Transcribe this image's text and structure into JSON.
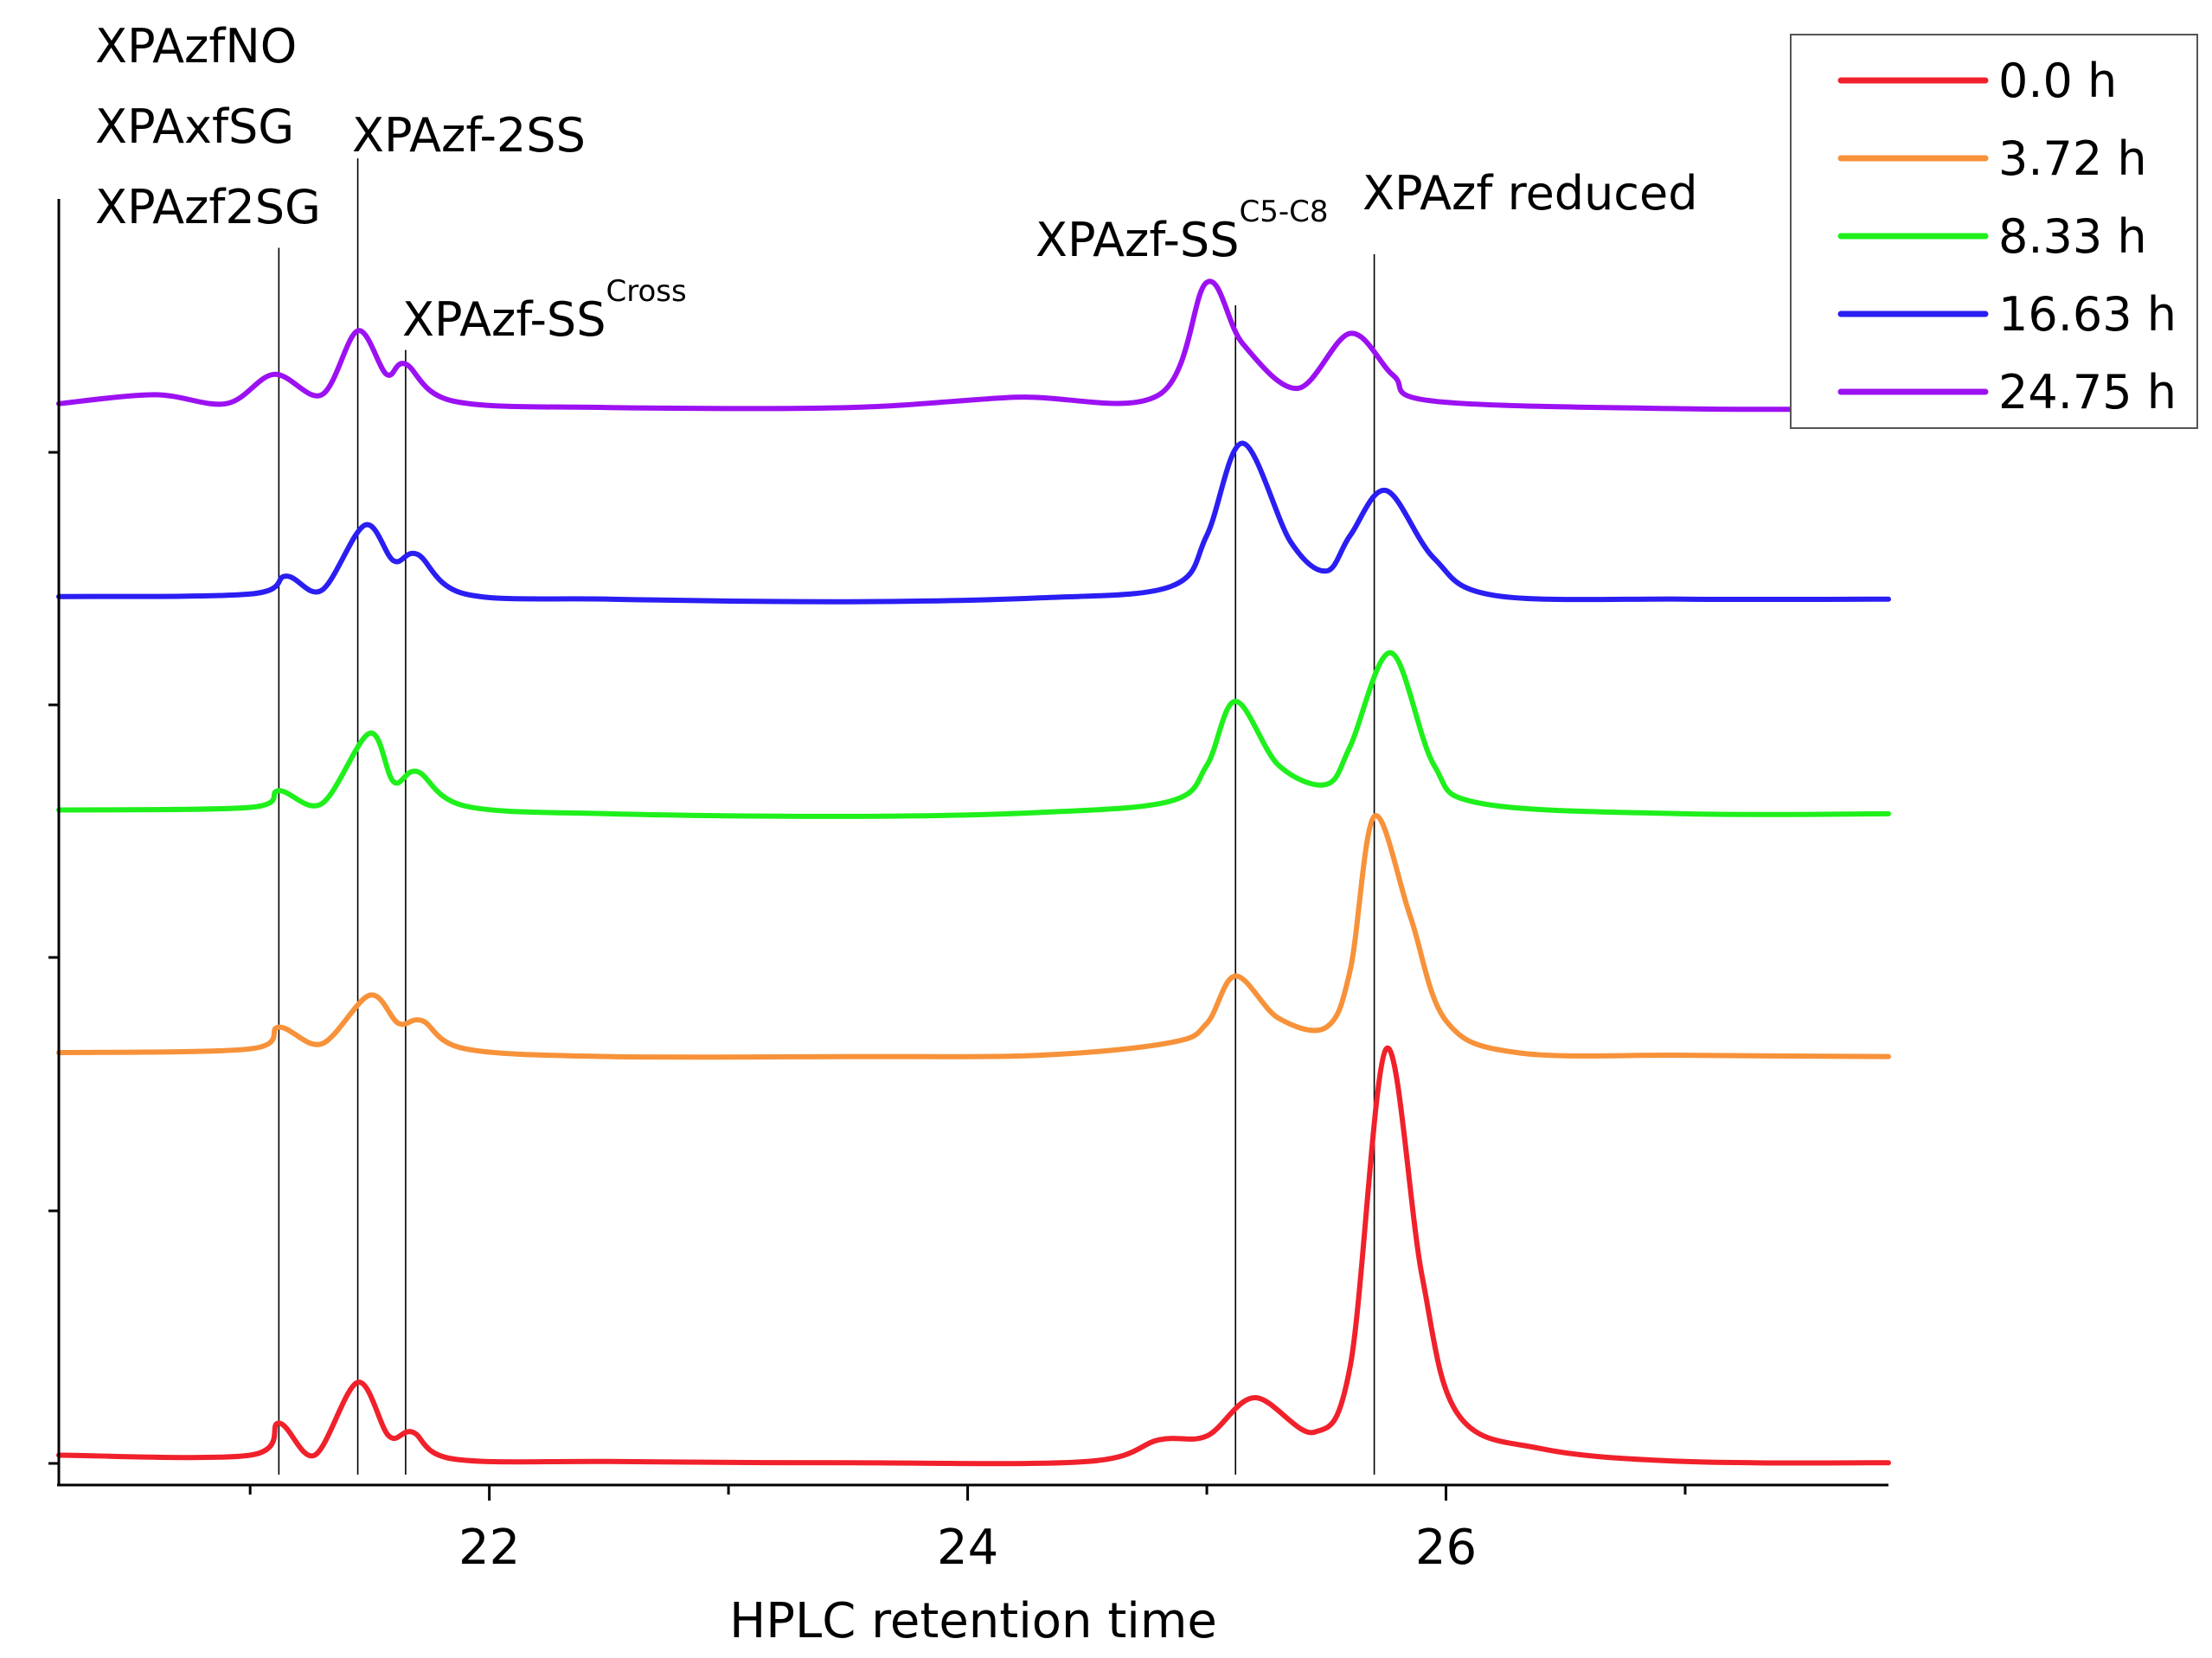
{
  "chart_data": {
    "type": "line",
    "xlabel": "HPLC retention time",
    "ylabel": "",
    "xlim": [
      20.2,
      27.85
    ],
    "ylim": [
      0,
      11.4
    ],
    "x_ticks": [
      22,
      24,
      26
    ],
    "x_tick_labels": [
      "22",
      "24",
      "26"
    ],
    "x_minor_ticks": [
      21,
      23,
      25,
      27
    ],
    "legend_position": "top-right",
    "annotations": [
      {
        "text": "XPAzfNO",
        "sup": ""
      },
      {
        "text": "XPAxfSG",
        "sup": ""
      },
      {
        "text": "XPAzf2SG",
        "sup": ""
      },
      {
        "text": "XPAzf-2SS",
        "sup": ""
      },
      {
        "text": "XPAzf-SS",
        "sup": "Cross"
      },
      {
        "text": "XPAzf-SS",
        "sup": "C5-C8"
      },
      {
        "text": "XPAzf reduced",
        "sup": ""
      }
    ],
    "reference_lines": [
      {
        "x": 21.12,
        "y_top": 9.65
      },
      {
        "x": 21.45,
        "y_top": 10.35
      },
      {
        "x": 21.65,
        "y_top": 8.85
      },
      {
        "x": 25.12,
        "y_top": 9.2
      },
      {
        "x": 25.7,
        "y_top": 9.6
      }
    ],
    "series": [
      {
        "name": "0.0 h",
        "color": "#f0212b",
        "baseline": 0.2,
        "points": [
          [
            20.2,
            0.2
          ],
          [
            21.0,
            0.2
          ],
          [
            21.12,
            0.45
          ],
          [
            21.27,
            0.2
          ],
          [
            21.45,
            0.77
          ],
          [
            21.58,
            0.35
          ],
          [
            21.68,
            0.38
          ],
          [
            21.85,
            0.17
          ],
          [
            22.5,
            0.15
          ],
          [
            23.5,
            0.14
          ],
          [
            24.5,
            0.15
          ],
          [
            24.8,
            0.32
          ],
          [
            25.0,
            0.35
          ],
          [
            25.2,
            0.65
          ],
          [
            25.45,
            0.38
          ],
          [
            25.6,
            0.9
          ],
          [
            25.75,
            3.38
          ],
          [
            25.9,
            1.6
          ],
          [
            26.05,
            0.52
          ],
          [
            26.4,
            0.25
          ],
          [
            27.0,
            0.15
          ],
          [
            27.85,
            0.14
          ]
        ]
      },
      {
        "name": "3.72 h",
        "color": "#f7923a",
        "baseline": 3.35,
        "points": [
          [
            20.2,
            3.35
          ],
          [
            21.0,
            3.38
          ],
          [
            21.12,
            3.55
          ],
          [
            21.3,
            3.42
          ],
          [
            21.5,
            3.8
          ],
          [
            21.62,
            3.58
          ],
          [
            21.72,
            3.6
          ],
          [
            21.9,
            3.38
          ],
          [
            22.5,
            3.32
          ],
          [
            23.5,
            3.32
          ],
          [
            24.3,
            3.33
          ],
          [
            24.85,
            3.43
          ],
          [
            25.0,
            3.58
          ],
          [
            25.12,
            3.95
          ],
          [
            25.3,
            3.62
          ],
          [
            25.5,
            3.55
          ],
          [
            25.6,
            4.0
          ],
          [
            25.7,
            5.2
          ],
          [
            25.85,
            4.42
          ],
          [
            26.0,
            3.6
          ],
          [
            26.3,
            3.35
          ],
          [
            27.0,
            3.33
          ],
          [
            27.85,
            3.32
          ]
        ]
      },
      {
        "name": "8.33 h",
        "color": "#1ff01c",
        "baseline": 5.25,
        "points": [
          [
            20.2,
            5.25
          ],
          [
            21.0,
            5.27
          ],
          [
            21.12,
            5.4
          ],
          [
            21.3,
            5.3
          ],
          [
            21.5,
            5.85
          ],
          [
            21.6,
            5.47
          ],
          [
            21.7,
            5.55
          ],
          [
            21.9,
            5.28
          ],
          [
            22.5,
            5.22
          ],
          [
            23.5,
            5.2
          ],
          [
            24.3,
            5.23
          ],
          [
            24.85,
            5.32
          ],
          [
            25.0,
            5.6
          ],
          [
            25.12,
            6.1
          ],
          [
            25.3,
            5.6
          ],
          [
            25.5,
            5.45
          ],
          [
            25.6,
            5.75
          ],
          [
            25.77,
            6.48
          ],
          [
            25.95,
            5.6
          ],
          [
            26.15,
            5.3
          ],
          [
            27.0,
            5.22
          ],
          [
            27.85,
            5.22
          ]
        ]
      },
      {
        "name": "16.63 h",
        "color": "#2a1ef2",
        "baseline": 6.92,
        "points": [
          [
            20.2,
            6.92
          ],
          [
            21.0,
            6.94
          ],
          [
            21.15,
            7.08
          ],
          [
            21.3,
            6.97
          ],
          [
            21.48,
            7.48
          ],
          [
            21.6,
            7.2
          ],
          [
            21.7,
            7.25
          ],
          [
            21.9,
            6.94
          ],
          [
            22.5,
            6.9
          ],
          [
            23.5,
            6.88
          ],
          [
            24.3,
            6.91
          ],
          [
            24.85,
            7.0
          ],
          [
            25.0,
            7.4
          ],
          [
            25.15,
            8.12
          ],
          [
            25.35,
            7.35
          ],
          [
            25.5,
            7.12
          ],
          [
            25.6,
            7.4
          ],
          [
            25.75,
            7.75
          ],
          [
            25.95,
            7.22
          ],
          [
            26.2,
            6.93
          ],
          [
            27.0,
            6.9
          ],
          [
            27.85,
            6.9
          ]
        ]
      },
      {
        "name": "24.75 h",
        "color": "#9c11f2",
        "baseline": 8.43,
        "points": [
          [
            20.2,
            8.43
          ],
          [
            20.6,
            8.5
          ],
          [
            20.9,
            8.43
          ],
          [
            21.1,
            8.66
          ],
          [
            21.3,
            8.5
          ],
          [
            21.45,
            9.0
          ],
          [
            21.57,
            8.66
          ],
          [
            21.65,
            8.74
          ],
          [
            21.85,
            8.45
          ],
          [
            22.5,
            8.4
          ],
          [
            23.5,
            8.4
          ],
          [
            24.2,
            8.48
          ],
          [
            24.8,
            8.5
          ],
          [
            25.0,
            9.38
          ],
          [
            25.15,
            8.9
          ],
          [
            25.38,
            8.55
          ],
          [
            25.6,
            8.98
          ],
          [
            25.78,
            8.65
          ],
          [
            25.95,
            8.45
          ],
          [
            27.0,
            8.39
          ],
          [
            27.85,
            8.39
          ]
        ]
      }
    ]
  }
}
